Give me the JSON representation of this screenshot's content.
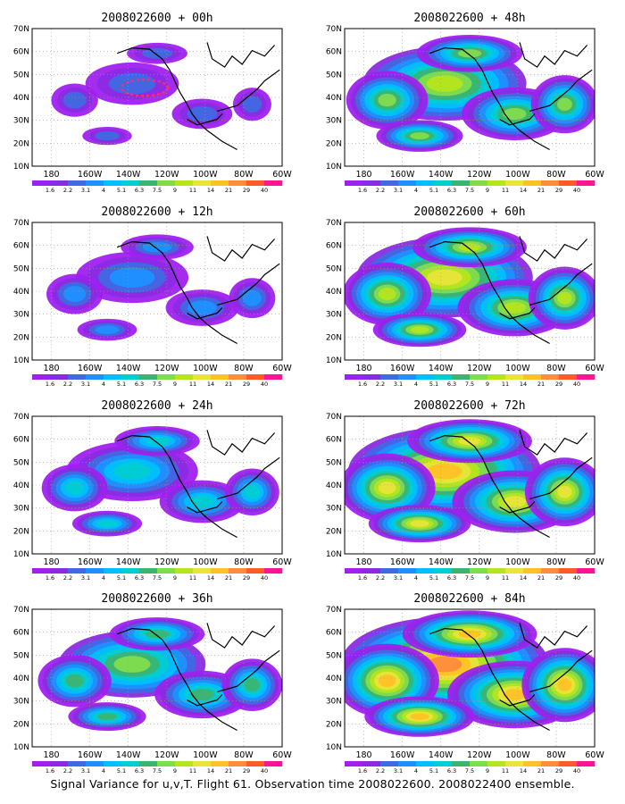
{
  "caption": "Signal Variance for u,v,T. Flight 61. Observation time 2008022600. 2008022400 ensemble.",
  "colors": {
    "land_outline": "#000000",
    "grid": "#9a9a9a",
    "flight_track": "#ff2a6d",
    "levels": [
      "#a020f0",
      "#8a2be2",
      "#4169e1",
      "#1e90ff",
      "#00bfff",
      "#00ced1",
      "#3cb371",
      "#7fdd4c",
      "#b5e61d",
      "#e8e43a",
      "#ffc125",
      "#ff8c3a",
      "#ff5a2a",
      "#ff1493"
    ]
  },
  "colorbar_labels": [
    "1.6",
    "2.2",
    "3.1",
    "4",
    "5.1",
    "6.3",
    "7.5",
    "9",
    "11",
    "14",
    "21",
    "29",
    "40"
  ],
  "chart_data": [
    {
      "type": "heatmap",
      "title": "2008022600 + 00h",
      "x_ticks": [
        "180",
        "160W",
        "140W",
        "120W",
        "100W",
        "80W",
        "60W"
      ],
      "y_ticks": [
        "10N",
        "20N",
        "30N",
        "40N",
        "50N",
        "60N",
        "70N"
      ],
      "lon_range": [
        -190,
        -60
      ],
      "lat_range": [
        10,
        70
      ],
      "intensity": 0.0
    },
    {
      "type": "heatmap",
      "title": "2008022600 + 48h",
      "x_ticks": [
        "180",
        "160W",
        "140W",
        "120W",
        "100W",
        "80W",
        "60W"
      ],
      "y_ticks": [
        "10N",
        "20N",
        "30N",
        "40N",
        "50N",
        "60N",
        "70N"
      ],
      "lon_range": [
        -190,
        -60
      ],
      "lat_range": [
        10,
        70
      ],
      "intensity": 0.55
    },
    {
      "type": "heatmap",
      "title": "2008022600 + 12h",
      "x_ticks": [
        "180",
        "160W",
        "140W",
        "120W",
        "100W",
        "80W",
        "60W"
      ],
      "y_ticks": [
        "10N",
        "20N",
        "30N",
        "40N",
        "50N",
        "60N",
        "70N"
      ],
      "lon_range": [
        -190,
        -60
      ],
      "lat_range": [
        10,
        70
      ],
      "intensity": 0.15
    },
    {
      "type": "heatmap",
      "title": "2008022600 + 60h",
      "x_ticks": [
        "180",
        "160W",
        "140W",
        "120W",
        "100W",
        "80W",
        "60W"
      ],
      "y_ticks": [
        "10N",
        "20N",
        "30N",
        "40N",
        "50N",
        "60N",
        "70N"
      ],
      "lon_range": [
        -190,
        -60
      ],
      "lat_range": [
        10,
        70
      ],
      "intensity": 0.65
    },
    {
      "type": "heatmap",
      "title": "2008022600 + 24h",
      "x_ticks": [
        "180",
        "160W",
        "140W",
        "120W",
        "100W",
        "80W",
        "60W"
      ],
      "y_ticks": [
        "10N",
        "20N",
        "30N",
        "40N",
        "50N",
        "60N",
        "70N"
      ],
      "lon_range": [
        -190,
        -60
      ],
      "lat_range": [
        10,
        70
      ],
      "intensity": 0.3
    },
    {
      "type": "heatmap",
      "title": "2008022600 + 72h",
      "x_ticks": [
        "180",
        "160W",
        "140W",
        "120W",
        "100W",
        "80W",
        "60W"
      ],
      "y_ticks": [
        "10N",
        "20N",
        "30N",
        "40N",
        "50N",
        "60N",
        "70N"
      ],
      "lon_range": [
        -190,
        -60
      ],
      "lat_range": [
        10,
        70
      ],
      "intensity": 0.78
    },
    {
      "type": "heatmap",
      "title": "2008022600 + 36h",
      "x_ticks": [
        "180",
        "160W",
        "140W",
        "120W",
        "100W",
        "80W",
        "60W"
      ],
      "y_ticks": [
        "10N",
        "20N",
        "30N",
        "40N",
        "50N",
        "60N",
        "70N"
      ],
      "lon_range": [
        -190,
        -60
      ],
      "lat_range": [
        10,
        70
      ],
      "intensity": 0.42
    },
    {
      "type": "heatmap",
      "title": "2008022600 + 84h",
      "x_ticks": [
        "180",
        "160W",
        "140W",
        "120W",
        "100W",
        "80W",
        "60W"
      ],
      "y_ticks": [
        "10N",
        "20N",
        "30N",
        "40N",
        "50N",
        "60N",
        "70N"
      ],
      "lon_range": [
        -190,
        -60
      ],
      "lat_range": [
        10,
        70
      ],
      "intensity": 0.9
    }
  ]
}
